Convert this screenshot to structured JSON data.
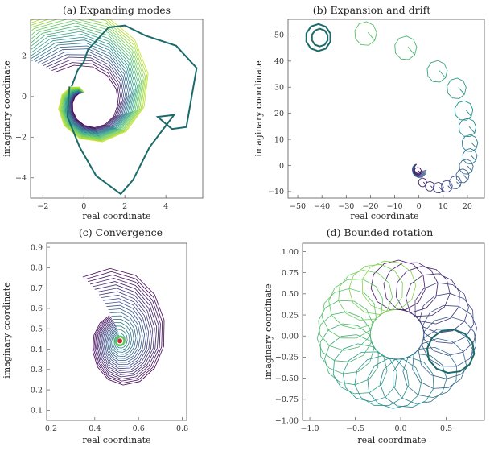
{
  "colors": {
    "dark": "#440154",
    "mid": "#3b528b",
    "teal": "#21918c",
    "green": "#5ec962",
    "light": "#c2df23",
    "thick": "#1b6b6b",
    "red": "#cc2b2b"
  },
  "chart_data": [
    {
      "id": "a",
      "type": "line",
      "title": "(a) Expanding modes",
      "xlabel": "real coordinate",
      "ylabel": "imaginary coordinate",
      "xlim": [
        -2.6,
        5.8
      ],
      "ylim": [
        -5.0,
        3.8
      ],
      "xticks": [
        -2,
        0,
        2,
        4
      ],
      "yticks": [
        -4,
        -2,
        0,
        2
      ],
      "xtick_labels": [
        "−2",
        "0",
        "2",
        "4"
      ],
      "ytick_labels": [
        "−4",
        "−2",
        "0",
        "2"
      ],
      "grid": false,
      "family": {
        "n": 22,
        "steps": 14,
        "a0": 1.9,
        "a1": 0.38,
        "b0": -0.15,
        "b1": 0.05,
        "k": 0.1,
        "p": 1.15,
        "rmax": 4.6,
        "phase": 2.4,
        "dir": 1,
        "cx": 0.02,
        "cy": 0.05
      },
      "highlight": {
        "x": [
          -0.6,
          -0.3,
          0.0,
          0.2,
          1.2,
          2.0,
          3.0,
          4.5,
          5.5,
          5.0,
          4.3,
          3.6,
          4.4,
          3.2,
          2.4,
          1.8,
          0.6,
          -0.2,
          -0.8,
          -0.7
        ],
        "y": [
          0.5,
          1.3,
          1.7,
          2.3,
          3.4,
          3.5,
          3.0,
          2.5,
          1.4,
          -1.5,
          -1.6,
          -1.0,
          -0.9,
          -2.5,
          -4.1,
          -4.8,
          -3.9,
          -2.5,
          -1.0,
          0.5
        ]
      }
    },
    {
      "id": "b",
      "type": "line",
      "title": "(b) Expansion and drift",
      "xlabel": "real coordinate",
      "ylabel": "imaginary coordinate",
      "xlim": [
        -54,
        27
      ],
      "ylim": [
        -12.5,
        56
      ],
      "xticks": [
        -50,
        -40,
        -30,
        -20,
        -10,
        0,
        10,
        20
      ],
      "yticks": [
        -10,
        0,
        10,
        20,
        30,
        40,
        50
      ],
      "xtick_labels": [
        "−50",
        "−40",
        "−30",
        "−20",
        "−10",
        "0",
        "10",
        "20"
      ],
      "ytick_labels": [
        "−10",
        "0",
        "10",
        "20",
        "30",
        "40",
        "50"
      ],
      "grid": false,
      "circles": [
        {
          "cx": -0.5,
          "cy": -2.2,
          "r": 1.5,
          "cr": 0.07
        },
        {
          "cx": 1.5,
          "cy": -6.5,
          "r": 1.7,
          "cr": 0.1
        },
        {
          "cx": 4.5,
          "cy": -8.0,
          "r": 1.9,
          "cr": 0.14
        },
        {
          "cx": 8.0,
          "cy": -8.5,
          "r": 2.1,
          "cr": 0.18
        },
        {
          "cx": 11.5,
          "cy": -8.0,
          "r": 2.3,
          "cr": 0.22
        },
        {
          "cx": 15.0,
          "cy": -6.5,
          "r": 2.5,
          "cr": 0.26
        },
        {
          "cx": 18.0,
          "cy": -4.0,
          "r": 2.7,
          "cr": 0.3
        },
        {
          "cx": 19.5,
          "cy": -0.5,
          "r": 2.9,
          "cr": 0.34
        },
        {
          "cx": 21.0,
          "cy": 3.5,
          "r": 3.0,
          "cr": 0.38
        },
        {
          "cx": 21.0,
          "cy": 8.5,
          "r": 3.3,
          "cr": 0.42
        },
        {
          "cx": 20.0,
          "cy": 14.5,
          "r": 3.6,
          "cr": 0.46
        },
        {
          "cx": 18.5,
          "cy": 21.0,
          "r": 3.8,
          "cr": 0.5
        },
        {
          "cx": 15.5,
          "cy": 29.5,
          "r": 4.0,
          "cr": 0.55
        },
        {
          "cx": 7.5,
          "cy": 36.0,
          "r": 4.2,
          "cr": 0.6
        },
        {
          "cx": -5.5,
          "cy": 45.0,
          "r": 4.6,
          "cr": 0.66
        },
        {
          "cx": -22.0,
          "cy": 50.5,
          "r": 4.6,
          "cr": 0.72
        }
      ],
      "dense": {
        "cx": -1.0,
        "cy": 0.0,
        "n": 7
      },
      "highlight": {
        "cx": -41.5,
        "cy": 49.0,
        "r": 5.2,
        "r2": 3.4
      }
    },
    {
      "id": "c",
      "type": "line",
      "title": "(c) Convergence",
      "xlabel": "real coordinate",
      "ylabel": "imaginary coordinate",
      "xlim": [
        0.18,
        0.82
      ],
      "ylim": [
        0.05,
        0.92
      ],
      "xticks": [
        0.2,
        0.4,
        0.6,
        0.8
      ],
      "yticks": [
        0.1,
        0.2,
        0.3,
        0.4,
        0.5,
        0.6,
        0.7,
        0.8,
        0.9
      ],
      "xtick_labels": [
        "0.2",
        "0.4",
        "0.6",
        "0.8"
      ],
      "ytick_labels": [
        "0.1",
        "0.2",
        "0.3",
        "0.4",
        "0.5",
        "0.6",
        "0.7",
        "0.8",
        "0.9"
      ],
      "grid": false,
      "family": {
        "n": 20,
        "steps": 15,
        "a0": 0.02,
        "a1": 0.42,
        "b0": -0.26,
        "b1": 0.06,
        "k": 0.0,
        "p": 0.95,
        "rmax": 0.38,
        "phase": -1.2,
        "dir": -1,
        "cx": 0.515,
        "cy": 0.44
      },
      "point": {
        "x": 0.515,
        "y": 0.44
      }
    },
    {
      "id": "d",
      "type": "line",
      "title": "(d) Bounded rotation",
      "xlabel": "real coordinate",
      "ylabel": "imaginary coordinate",
      "xlim": [
        -1.08,
        0.92
      ],
      "ylim": [
        -1.0,
        1.1
      ],
      "xticks": [
        -1.0,
        -0.5,
        0.0,
        0.5
      ],
      "yticks": [
        -1.0,
        -0.75,
        -0.5,
        -0.25,
        0.0,
        0.25,
        0.5,
        0.75,
        1.0
      ],
      "xtick_labels": [
        "−1.0",
        "−0.5",
        "0.0",
        "0.5"
      ],
      "ytick_labels": [
        "−1.00",
        "−0.75",
        "−0.50",
        "−0.25",
        "0.00",
        "0.25",
        "0.50",
        "0.75",
        "1.00"
      ],
      "grid": false,
      "ring": {
        "n": 26,
        "R": 0.58,
        "r": 0.3,
        "cx": -0.04,
        "cy": 0.02,
        "a0": 1.55,
        "a1": -4.55
      },
      "highlight": {
        "cx": 0.55,
        "cy": -0.18,
        "r": 0.26
      }
    }
  ]
}
